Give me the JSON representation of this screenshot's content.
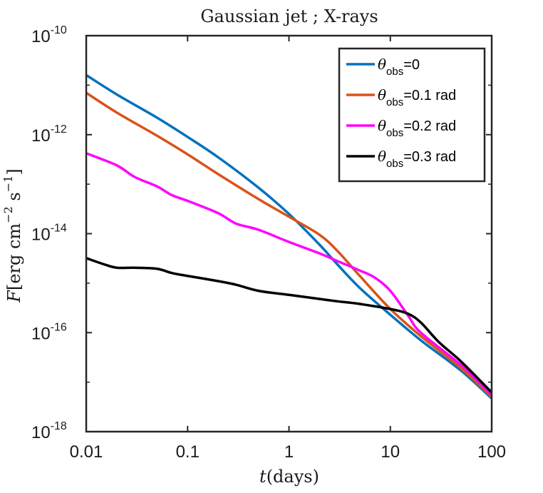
{
  "chart_data": {
    "type": "line",
    "title": "Gaussian jet ; X-rays",
    "xlabel": "t(days)",
    "ylabel": "F[erg cm^-2 s^-1]",
    "xscale": "log",
    "yscale": "log",
    "xlim": [
      0.01,
      100
    ],
    "ylim": [
      1e-18,
      1e-10
    ],
    "xticks": [
      {
        "value": 0.01,
        "label": "0.01"
      },
      {
        "value": 0.1,
        "label": "0.1"
      },
      {
        "value": 1,
        "label": "1"
      },
      {
        "value": 10,
        "label": "10"
      },
      {
        "value": 100,
        "label": "100"
      }
    ],
    "yticks": [
      {
        "value": 1e-18,
        "base": "10",
        "exp": "-18"
      },
      {
        "value": 1e-16,
        "base": "10",
        "exp": "-16"
      },
      {
        "value": 1e-14,
        "base": "10",
        "exp": "-14"
      },
      {
        "value": 1e-12,
        "base": "10",
        "exp": "-12"
      },
      {
        "value": 1e-10,
        "base": "10",
        "exp": "-10"
      }
    ],
    "legend_position": "top-right",
    "series": [
      {
        "name": "θobs=0",
        "legend_symbol": "θ",
        "legend_sub": "obs",
        "legend_rest": "=0",
        "color": "#0072BD",
        "x": [
          0.01,
          0.02,
          0.05,
          0.1,
          0.2,
          0.5,
          1,
          2,
          3,
          5,
          10,
          20,
          50,
          100
        ],
        "y": [
          1.6e-11,
          6.5e-12,
          2.2e-12,
          9e-13,
          3.5e-13,
          8.5e-14,
          2.5e-14,
          6e-15,
          2.4e-15,
          8e-16,
          2.3e-16,
          7e-17,
          1.7e-17,
          4.7e-18
        ]
      },
      {
        "name": "θobs=0.1 rad",
        "legend_symbol": "θ",
        "legend_sub": "obs",
        "legend_rest": "=0.1 rad",
        "color": "#D95319",
        "x": [
          0.01,
          0.02,
          0.05,
          0.1,
          0.2,
          0.5,
          1,
          2,
          3,
          5,
          10,
          20,
          50,
          100
        ],
        "y": [
          7e-12,
          2.8e-12,
          9.5e-13,
          4e-13,
          1.6e-13,
          5e-14,
          2.2e-14,
          9.5e-15,
          4.5e-15,
          1.4e-15,
          3e-16,
          8.5e-17,
          1.9e-17,
          5e-18
        ]
      },
      {
        "name": "θobs=0.2 rad",
        "legend_symbol": "θ",
        "legend_sub": "obs",
        "legend_rest": "=0.2 rad",
        "color": "#FF00FF",
        "x": [
          0.01,
          0.02,
          0.03,
          0.05,
          0.07,
          0.1,
          0.2,
          0.3,
          0.5,
          1,
          2,
          3,
          5,
          7,
          10,
          15,
          20,
          50,
          100
        ],
        "y": [
          4.2e-13,
          2.4e-13,
          1.4e-13,
          9e-14,
          6e-14,
          4.6e-14,
          2.6e-14,
          1.6e-14,
          1.2e-14,
          6.8e-15,
          4e-15,
          2.8e-15,
          1.8e-15,
          1.3e-15,
          7e-16,
          2.2e-16,
          1e-16,
          2.2e-17,
          5.5e-18
        ]
      },
      {
        "name": "θobs=0.3 rad",
        "legend_symbol": "θ",
        "legend_sub": "obs",
        "legend_rest": "=0.3 rad",
        "color": "#000000",
        "x": [
          0.01,
          0.015,
          0.02,
          0.03,
          0.05,
          0.07,
          0.1,
          0.2,
          0.3,
          0.5,
          1,
          2,
          3,
          5,
          10,
          15,
          20,
          30,
          50,
          100
        ],
        "y": [
          3.2e-15,
          2.4e-15,
          2.05e-15,
          2.05e-15,
          1.95e-15,
          1.6e-15,
          1.4e-15,
          1.1e-15,
          9.3e-16,
          7e-16,
          5.8e-16,
          4.8e-16,
          4.3e-16,
          3.8e-16,
          3e-16,
          2.4e-16,
          1.6e-16,
          6.5e-17,
          2.6e-17,
          6.2e-18
        ]
      }
    ]
  }
}
